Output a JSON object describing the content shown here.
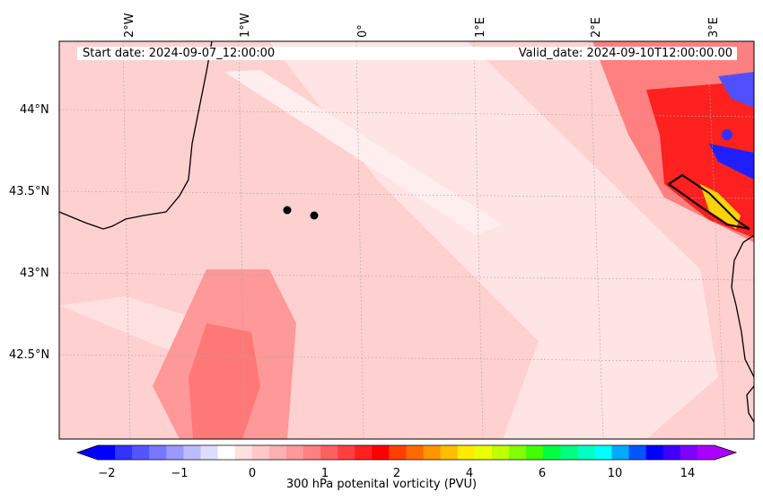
{
  "map": {
    "start_date": "Start date: 2024-09-07_12:00:00",
    "valid_date": "Valid_date: 2024-09-10T12:00:00.00",
    "lon_labels": [
      "2°W",
      "1°W",
      "0°",
      "1°E",
      "2°E",
      "3°E"
    ],
    "lat_labels": [
      "44°N",
      "43.5°N",
      "43°N",
      "42.5°N"
    ],
    "markers": [
      {
        "lon": -0.78,
        "lat": 43.39
      },
      {
        "lon": -0.56,
        "lat": 43.36
      }
    ],
    "colors": {
      "background": "#ffd0d0",
      "light_band": "#ffe8e8",
      "mid_band": "#ff9a9a",
      "strong": "#ff3030",
      "negative": "#3030ff",
      "coastline": "#000000"
    }
  },
  "colorbar": {
    "label": "300 hPa potenital vorticity (PVU)",
    "ticks": [
      "−2",
      "−1",
      "0",
      "1",
      "2",
      "4",
      "6",
      "10",
      "14"
    ],
    "colors": [
      "#0000ff",
      "#3333ff",
      "#5555ff",
      "#7777ff",
      "#9999ff",
      "#bbbbff",
      "#ddddff",
      "#ffffff",
      "#ffe0e0",
      "#ffc8c8",
      "#ffb0b0",
      "#ff9898",
      "#ff8080",
      "#ff6060",
      "#ff4040",
      "#ff2020",
      "#ff0000",
      "#ff4000",
      "#ff6a00",
      "#ff9500",
      "#ffbf00",
      "#ffea00",
      "#eaff00",
      "#bfff00",
      "#80ff00",
      "#40ff00",
      "#00ff40",
      "#00ff80",
      "#00ffc0",
      "#00ffff",
      "#00aaff",
      "#0055ff",
      "#0000ff",
      "#4000ff",
      "#8000ff",
      "#aa00ff"
    ]
  }
}
